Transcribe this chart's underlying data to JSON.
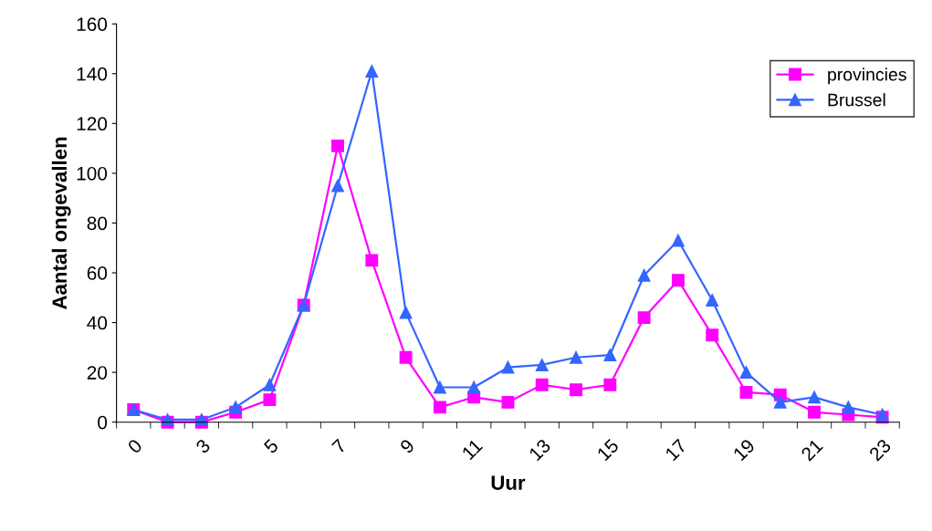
{
  "chart_data": {
    "type": "line",
    "xlabel": "Uur",
    "ylabel": "Aantal ongevallen",
    "categories": [
      "0",
      null,
      "3",
      null,
      "5",
      null,
      "7",
      null,
      "9",
      null,
      "11",
      null,
      "13",
      null,
      "15",
      null,
      "17",
      null,
      "19",
      null,
      "21",
      null,
      "23"
    ],
    "series": [
      {
        "name": "provincies",
        "color": "#ff00ff",
        "marker": "square",
        "values": [
          5,
          0,
          0,
          4,
          9,
          47,
          111,
          65,
          26,
          6,
          10,
          8,
          15,
          13,
          15,
          42,
          57,
          35,
          12,
          11,
          4,
          3,
          2
        ]
      },
      {
        "name": "Brussel",
        "color": "#3366ff",
        "marker": "triangle",
        "values": [
          5,
          1,
          1,
          6,
          15,
          47,
          95,
          141,
          44,
          14,
          14,
          22,
          23,
          26,
          27,
          59,
          73,
          49,
          20,
          8,
          10,
          6,
          3
        ]
      }
    ],
    "ylim": [
      0,
      160
    ],
    "yticks": [
      0,
      20,
      40,
      60,
      80,
      100,
      120,
      140,
      160
    ],
    "grid": false,
    "legend": "top right"
  }
}
